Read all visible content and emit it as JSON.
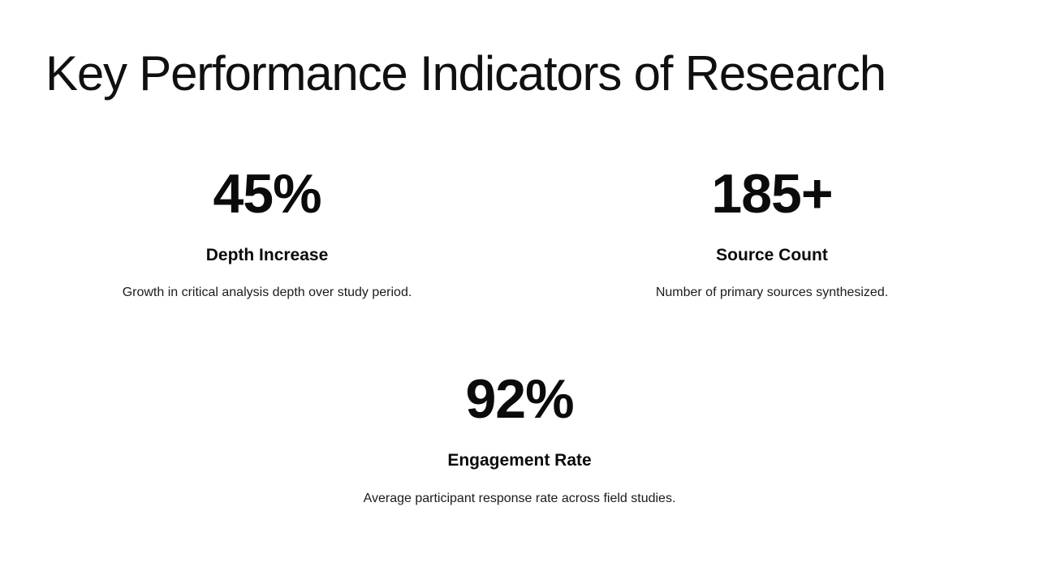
{
  "slide": {
    "title": "Key Performance Indicators of Research",
    "stats": [
      {
        "value": "45%",
        "label": "Depth Increase",
        "description": "Growth in critical analysis depth over study period."
      },
      {
        "value": "185+",
        "label": "Source Count",
        "description": "Number of primary sources synthesized."
      },
      {
        "value": "92%",
        "label": "Engagement Rate",
        "description": "Average participant response rate across field studies."
      }
    ],
    "colors": {
      "background": "#ffffff",
      "text": "#111111"
    }
  }
}
